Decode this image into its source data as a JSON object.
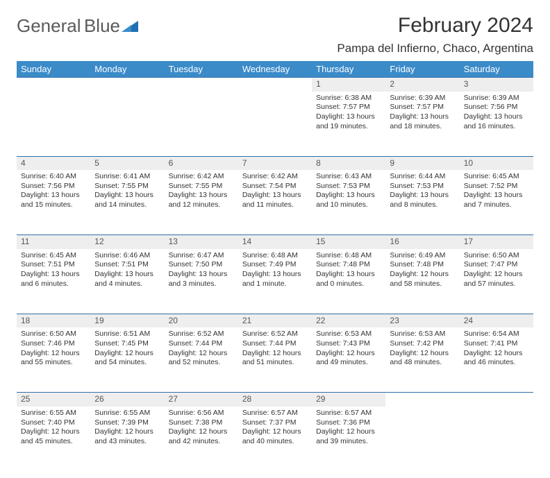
{
  "logo": {
    "line1": "General",
    "line2": "Blue"
  },
  "title": "February 2024",
  "location": "Pampa del Infierno, Chaco, Argentina",
  "colors": {
    "header_bg": "#3b8bc9",
    "header_text": "#ffffff",
    "daynum_bg": "#eeeeee",
    "row_border": "#2f6fa8",
    "logo_gray": "#5a5a5a",
    "logo_blue": "#1f6fb2"
  },
  "weekdays": [
    "Sunday",
    "Monday",
    "Tuesday",
    "Wednesday",
    "Thursday",
    "Friday",
    "Saturday"
  ],
  "weeks": [
    [
      null,
      null,
      null,
      null,
      {
        "n": "1",
        "sr": "6:38 AM",
        "ss": "7:57 PM",
        "dl": "13 hours and 19 minutes."
      },
      {
        "n": "2",
        "sr": "6:39 AM",
        "ss": "7:57 PM",
        "dl": "13 hours and 18 minutes."
      },
      {
        "n": "3",
        "sr": "6:39 AM",
        "ss": "7:56 PM",
        "dl": "13 hours and 16 minutes."
      }
    ],
    [
      {
        "n": "4",
        "sr": "6:40 AM",
        "ss": "7:56 PM",
        "dl": "13 hours and 15 minutes."
      },
      {
        "n": "5",
        "sr": "6:41 AM",
        "ss": "7:55 PM",
        "dl": "13 hours and 14 minutes."
      },
      {
        "n": "6",
        "sr": "6:42 AM",
        "ss": "7:55 PM",
        "dl": "13 hours and 12 minutes."
      },
      {
        "n": "7",
        "sr": "6:42 AM",
        "ss": "7:54 PM",
        "dl": "13 hours and 11 minutes."
      },
      {
        "n": "8",
        "sr": "6:43 AM",
        "ss": "7:53 PM",
        "dl": "13 hours and 10 minutes."
      },
      {
        "n": "9",
        "sr": "6:44 AM",
        "ss": "7:53 PM",
        "dl": "13 hours and 8 minutes."
      },
      {
        "n": "10",
        "sr": "6:45 AM",
        "ss": "7:52 PM",
        "dl": "13 hours and 7 minutes."
      }
    ],
    [
      {
        "n": "11",
        "sr": "6:45 AM",
        "ss": "7:51 PM",
        "dl": "13 hours and 6 minutes."
      },
      {
        "n": "12",
        "sr": "6:46 AM",
        "ss": "7:51 PM",
        "dl": "13 hours and 4 minutes."
      },
      {
        "n": "13",
        "sr": "6:47 AM",
        "ss": "7:50 PM",
        "dl": "13 hours and 3 minutes."
      },
      {
        "n": "14",
        "sr": "6:48 AM",
        "ss": "7:49 PM",
        "dl": "13 hours and 1 minute."
      },
      {
        "n": "15",
        "sr": "6:48 AM",
        "ss": "7:48 PM",
        "dl": "13 hours and 0 minutes."
      },
      {
        "n": "16",
        "sr": "6:49 AM",
        "ss": "7:48 PM",
        "dl": "12 hours and 58 minutes."
      },
      {
        "n": "17",
        "sr": "6:50 AM",
        "ss": "7:47 PM",
        "dl": "12 hours and 57 minutes."
      }
    ],
    [
      {
        "n": "18",
        "sr": "6:50 AM",
        "ss": "7:46 PM",
        "dl": "12 hours and 55 minutes."
      },
      {
        "n": "19",
        "sr": "6:51 AM",
        "ss": "7:45 PM",
        "dl": "12 hours and 54 minutes."
      },
      {
        "n": "20",
        "sr": "6:52 AM",
        "ss": "7:44 PM",
        "dl": "12 hours and 52 minutes."
      },
      {
        "n": "21",
        "sr": "6:52 AM",
        "ss": "7:44 PM",
        "dl": "12 hours and 51 minutes."
      },
      {
        "n": "22",
        "sr": "6:53 AM",
        "ss": "7:43 PM",
        "dl": "12 hours and 49 minutes."
      },
      {
        "n": "23",
        "sr": "6:53 AM",
        "ss": "7:42 PM",
        "dl": "12 hours and 48 minutes."
      },
      {
        "n": "24",
        "sr": "6:54 AM",
        "ss": "7:41 PM",
        "dl": "12 hours and 46 minutes."
      }
    ],
    [
      {
        "n": "25",
        "sr": "6:55 AM",
        "ss": "7:40 PM",
        "dl": "12 hours and 45 minutes."
      },
      {
        "n": "26",
        "sr": "6:55 AM",
        "ss": "7:39 PM",
        "dl": "12 hours and 43 minutes."
      },
      {
        "n": "27",
        "sr": "6:56 AM",
        "ss": "7:38 PM",
        "dl": "12 hours and 42 minutes."
      },
      {
        "n": "28",
        "sr": "6:57 AM",
        "ss": "7:37 PM",
        "dl": "12 hours and 40 minutes."
      },
      {
        "n": "29",
        "sr": "6:57 AM",
        "ss": "7:36 PM",
        "dl": "12 hours and 39 minutes."
      },
      null,
      null
    ]
  ],
  "labels": {
    "sunrise": "Sunrise:",
    "sunset": "Sunset:",
    "daylight": "Daylight:"
  }
}
